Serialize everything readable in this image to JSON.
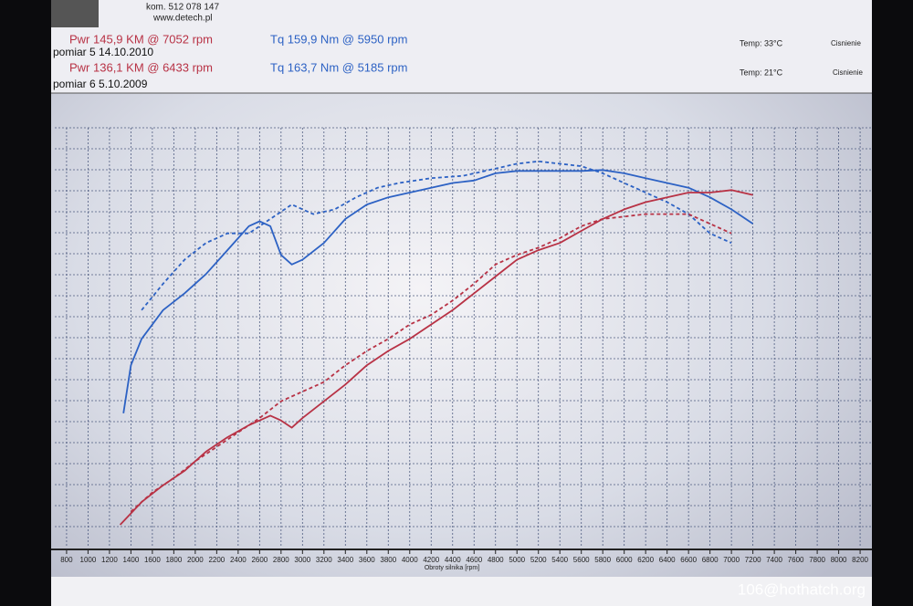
{
  "chart_data": {
    "type": "line",
    "x_label": "Obroty silnika [rpm]",
    "annotations": [
      {
        "text": "kom. 512 078 147"
      },
      {
        "text": "www.detech.pl"
      },
      {
        "text": "Pwr 145,9 KM @ 7052 rpm"
      },
      {
        "text": "Tq 159,9 Nm @ 5950 rpm"
      },
      {
        "text": "pomiar 5  14.10.2010"
      },
      {
        "text": "Pwr 136,1 KM @ 6433 rpm"
      },
      {
        "text": "Tq 163,7 Nm @ 5185 rpm"
      },
      {
        "text": "pomiar 6  5.10.2009"
      },
      {
        "text": "Temp: 33°C"
      },
      {
        "text": "Cisnienie"
      },
      {
        "text": "Temp: 21°C"
      },
      {
        "text": "Cisnienie"
      },
      {
        "text": "106@hothatch.org"
      }
    ],
    "xlim": [
      690,
      8310
    ],
    "ylim": [
      0,
      175
    ],
    "xticks": [
      800,
      1000,
      1200,
      1400,
      1600,
      1800,
      2000,
      2200,
      2400,
      2600,
      2800,
      3000,
      3200,
      3400,
      3600,
      3800,
      4000,
      4200,
      4400,
      4600,
      4800,
      5000,
      5200,
      5400,
      5600,
      5800,
      6000,
      6200,
      6400,
      6600,
      6800,
      7000,
      7200,
      7400,
      7600,
      7800,
      8000,
      8200
    ],
    "grid": true,
    "series": [
      {
        "color": "#2d62c4",
        "dashed": false,
        "x": [
          1330,
          1400,
          1500,
          1700,
          1900,
          2100,
          2300,
          2500,
          2600,
          2700,
          2800,
          2900,
          3000,
          3200,
          3400,
          3600,
          3800,
          4000,
          4200,
          4400,
          4600,
          4800,
          5000,
          5200,
          5400,
          5600,
          5800,
          6000,
          6200,
          6400,
          6600,
          6800,
          7000,
          7200
        ],
        "values": [
          56,
          76,
          87,
          99,
          106,
          114,
          124,
          134,
          136,
          134,
          122,
          118,
          120,
          127,
          137,
          143,
          146,
          148,
          150,
          152,
          153,
          156,
          157,
          157,
          157,
          157,
          157.4,
          156,
          154,
          152,
          150,
          146,
          141,
          135
        ]
      },
      {
        "color": "#2d62c4",
        "dashed": true,
        "x": [
          1500,
          1700,
          1900,
          2100,
          2300,
          2500,
          2700,
          2900,
          3100,
          3300,
          3500,
          3700,
          3900,
          4200,
          4500,
          4800,
          5000,
          5200,
          5400,
          5600,
          5800,
          6000,
          6200,
          6400,
          6600,
          6800,
          7000
        ],
        "values": [
          99,
          110,
          120,
          127,
          131,
          131,
          137,
          143,
          139,
          141,
          146,
          150,
          152,
          154,
          155,
          158,
          160,
          161,
          160,
          159,
          156,
          152,
          148,
          144,
          139,
          131,
          127
        ]
      },
      {
        "color": "#b83245",
        "dashed": false,
        "x": [
          1300,
          1500,
          1700,
          1900,
          2100,
          2300,
          2500,
          2700,
          2800,
          2900,
          3000,
          3200,
          3400,
          3600,
          3800,
          4000,
          4200,
          4400,
          4600,
          4800,
          5000,
          5200,
          5400,
          5600,
          5800,
          6000,
          6200,
          6400,
          6600,
          6800,
          7000,
          7200
        ],
        "values": [
          9.5,
          19,
          26,
          32,
          40,
          46,
          51,
          55,
          53,
          50,
          54,
          61,
          68,
          76,
          82,
          87,
          93,
          99,
          106,
          113,
          120,
          124,
          127,
          132,
          137,
          141,
          144,
          146,
          148,
          148,
          149,
          147
        ]
      },
      {
        "color": "#b83245",
        "dashed": true,
        "x": [
          1400,
          1600,
          1800,
          2000,
          2200,
          2400,
          2600,
          2800,
          3000,
          3200,
          3400,
          3600,
          3800,
          4000,
          4200,
          4400,
          4600,
          4800,
          5000,
          5200,
          5400,
          5600,
          5800,
          6000,
          6200,
          6400,
          6600,
          6800,
          7000
        ],
        "values": [
          15,
          23,
          29,
          36,
          42,
          48,
          54,
          61,
          65,
          69,
          76,
          82,
          87,
          93,
          97,
          103,
          110,
          118,
          122,
          125,
          129,
          134,
          137,
          138,
          139,
          139,
          139,
          135,
          131
        ]
      }
    ]
  }
}
